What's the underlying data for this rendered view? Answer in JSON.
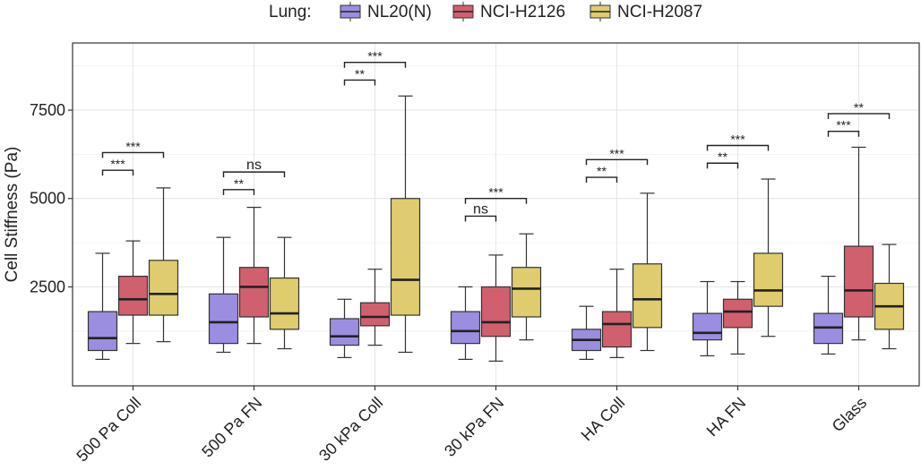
{
  "chart_data": {
    "type": "boxplot",
    "ylabel": "Cell Stiffness (Pa)",
    "xlabel": "",
    "yticks": [
      2500,
      5000,
      7500
    ],
    "ylim": [
      -300,
      9400
    ],
    "grid": true,
    "legend": {
      "title": "Lung:",
      "placement": "top",
      "entries": [
        {
          "name": "NL20(N)",
          "color": "#9b8ee0"
        },
        {
          "name": "NCI-H2126",
          "color": "#d0606e"
        },
        {
          "name": "NCI-H2087",
          "color": "#dfcc6e"
        }
      ]
    },
    "categories": [
      "500 Pa Coll",
      "500 Pa FN",
      "30 kPa Coll",
      "30 kPa FN",
      "HA Coll",
      "HA FN",
      "Glass"
    ],
    "series": [
      {
        "name": "NL20(N)",
        "color": "#9b8ee0",
        "boxes": [
          {
            "min": 450,
            "q1": 700,
            "median": 1050,
            "q3": 1800,
            "max": 3450
          },
          {
            "min": 650,
            "q1": 900,
            "median": 1500,
            "q3": 2300,
            "max": 3900
          },
          {
            "min": 500,
            "q1": 850,
            "median": 1100,
            "q3": 1600,
            "max": 2150
          },
          {
            "min": 450,
            "q1": 900,
            "median": 1250,
            "q3": 1800,
            "max": 2500
          },
          {
            "min": 450,
            "q1": 700,
            "median": 1000,
            "q3": 1300,
            "max": 1950
          },
          {
            "min": 550,
            "q1": 1000,
            "median": 1200,
            "q3": 1750,
            "max": 2650
          },
          {
            "min": 600,
            "q1": 900,
            "median": 1350,
            "q3": 1750,
            "max": 2800
          }
        ]
      },
      {
        "name": "NCI-H2126",
        "color": "#d0606e",
        "boxes": [
          {
            "min": 900,
            "q1": 1700,
            "median": 2150,
            "q3": 2800,
            "max": 3800
          },
          {
            "min": 900,
            "q1": 1650,
            "median": 2500,
            "q3": 3050,
            "max": 4750
          },
          {
            "min": 850,
            "q1": 1400,
            "median": 1650,
            "q3": 2050,
            "max": 3000
          },
          {
            "min": 400,
            "q1": 1100,
            "median": 1500,
            "q3": 2500,
            "max": 3400
          },
          {
            "min": 500,
            "q1": 800,
            "median": 1450,
            "q3": 1800,
            "max": 3000
          },
          {
            "min": 600,
            "q1": 1350,
            "median": 1800,
            "q3": 2150,
            "max": 2650
          },
          {
            "min": 1000,
            "q1": 1650,
            "median": 2400,
            "q3": 3650,
            "max": 6450
          }
        ]
      },
      {
        "name": "NCI-H2087",
        "color": "#dfcc6e",
        "boxes": [
          {
            "min": 950,
            "q1": 1700,
            "median": 2300,
            "q3": 3250,
            "max": 5300
          },
          {
            "min": 750,
            "q1": 1300,
            "median": 1750,
            "q3": 2750,
            "max": 3900
          },
          {
            "min": 650,
            "q1": 1700,
            "median": 2700,
            "q3": 5000,
            "max": 7900
          },
          {
            "min": 1000,
            "q1": 1650,
            "median": 2450,
            "q3": 3050,
            "max": 4000
          },
          {
            "min": 700,
            "q1": 1350,
            "median": 2150,
            "q3": 3150,
            "max": 5150
          },
          {
            "min": 1100,
            "q1": 1950,
            "median": 2400,
            "q3": 3450,
            "max": 5550
          },
          {
            "min": 750,
            "q1": 1300,
            "median": 1950,
            "q3": 2600,
            "max": 3700
          }
        ]
      }
    ],
    "annotations": [
      {
        "category": 0,
        "from": 0,
        "to": 1,
        "label": "***",
        "y": 5800
      },
      {
        "category": 0,
        "from": 0,
        "to": 2,
        "label": "***",
        "y": 6300
      },
      {
        "category": 1,
        "from": 0,
        "to": 1,
        "label": "**",
        "y": 5250
      },
      {
        "category": 1,
        "from": 0,
        "to": 2,
        "label": "ns",
        "y": 5750
      },
      {
        "category": 2,
        "from": 0,
        "to": 1,
        "label": "**",
        "y": 8350
      },
      {
        "category": 2,
        "from": 0,
        "to": 2,
        "label": "***",
        "y": 8850
      },
      {
        "category": 3,
        "from": 0,
        "to": 1,
        "label": "ns",
        "y": 4500
      },
      {
        "category": 3,
        "from": 0,
        "to": 2,
        "label": "***",
        "y": 5000
      },
      {
        "category": 4,
        "from": 0,
        "to": 1,
        "label": "**",
        "y": 5600
      },
      {
        "category": 4,
        "from": 0,
        "to": 2,
        "label": "***",
        "y": 6100
      },
      {
        "category": 5,
        "from": 0,
        "to": 1,
        "label": "**",
        "y": 6000
      },
      {
        "category": 5,
        "from": 0,
        "to": 2,
        "label": "***",
        "y": 6500
      },
      {
        "category": 6,
        "from": 0,
        "to": 1,
        "label": "***",
        "y": 6900
      },
      {
        "category": 6,
        "from": 0,
        "to": 2,
        "label": "**",
        "y": 7400
      }
    ]
  }
}
